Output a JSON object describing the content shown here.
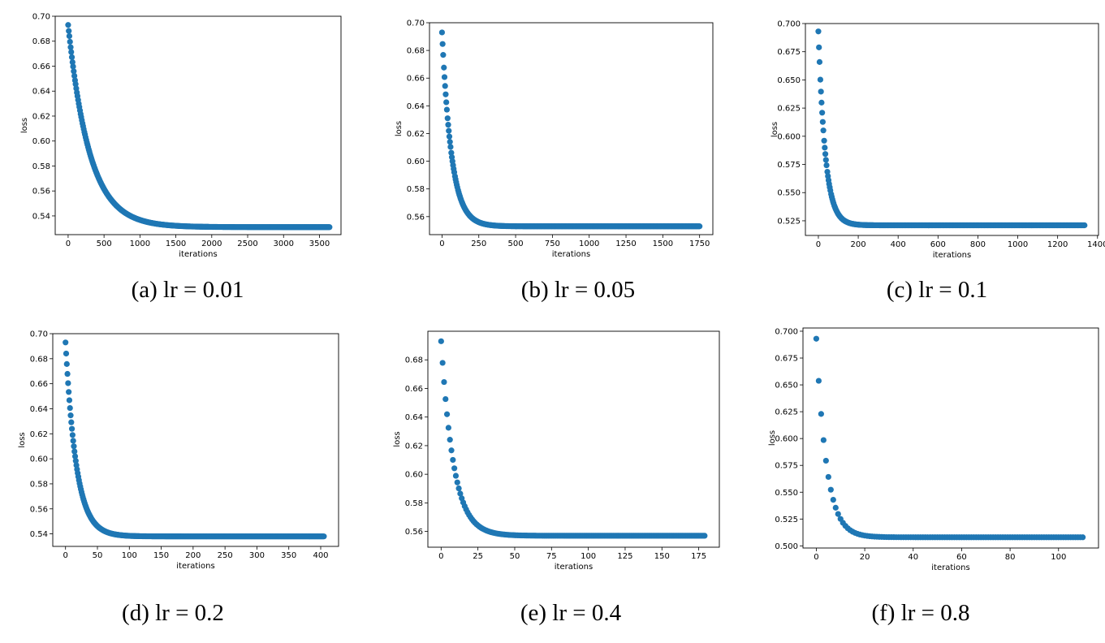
{
  "chart_data": [
    {
      "type": "scatter",
      "caption": "(a) lr = 0.01",
      "xlabel": "iterations",
      "ylabel": "loss",
      "xlim": [
        -180,
        3800
      ],
      "ylim": [
        0.525,
        0.7
      ],
      "xticks": [
        0,
        500,
        1000,
        1500,
        2000,
        2500,
        3000,
        3500
      ],
      "yticks": [
        0.54,
        0.56,
        0.58,
        0.6,
        0.62,
        0.64,
        0.66,
        0.68,
        0.7
      ],
      "ytick_labels": [
        "0.54",
        "0.56",
        "0.58",
        "0.60",
        "0.62",
        "0.64",
        "0.66",
        "0.68",
        "0.70"
      ],
      "curve": {
        "start": 0.693,
        "end": 0.531,
        "tau": 300,
        "n_points": 3640,
        "x_max": 3640
      },
      "color": "#1f77b4"
    },
    {
      "type": "scatter",
      "caption": "(b) lr = 0.05",
      "xlabel": "iterations",
      "ylabel": "loss",
      "xlim": [
        -85,
        1840
      ],
      "ylim": [
        0.547,
        0.7
      ],
      "xticks": [
        0,
        250,
        500,
        750,
        1000,
        1250,
        1500,
        1750
      ],
      "yticks": [
        0.56,
        0.58,
        0.6,
        0.62,
        0.64,
        0.66,
        0.68,
        0.7
      ],
      "ytick_labels": [
        "0.56",
        "0.58",
        "0.60",
        "0.62",
        "0.64",
        "0.66",
        "0.68",
        "0.70"
      ],
      "curve": {
        "start": 0.693,
        "end": 0.553,
        "tau": 65,
        "n_points": 1750,
        "x_max": 1750
      },
      "color": "#1f77b4"
    },
    {
      "type": "scatter",
      "caption": "(c) lr = 0.1",
      "xlabel": "iterations",
      "ylabel": "loss",
      "xlim": [
        -65,
        1405
      ],
      "ylim": [
        0.512,
        0.7
      ],
      "xticks": [
        0,
        200,
        400,
        600,
        800,
        1000,
        1200,
        1400
      ],
      "yticks": [
        0.525,
        0.55,
        0.575,
        0.6,
        0.625,
        0.65,
        0.675,
        0.7
      ],
      "ytick_labels": [
        "0.525",
        "0.550",
        "0.575",
        "0.600",
        "0.625",
        "0.650",
        "0.675",
        "0.700"
      ],
      "curve": {
        "start": 0.693,
        "end": 0.521,
        "tau": 35,
        "n_points": 1335,
        "x_max": 1335
      },
      "color": "#1f77b4"
    },
    {
      "type": "scatter",
      "caption": "(d) lr = 0.2",
      "xlabel": "iterations",
      "ylabel": "loss",
      "xlim": [
        -20,
        428
      ],
      "ylim": [
        0.53,
        0.7
      ],
      "xticks": [
        0,
        50,
        100,
        150,
        200,
        250,
        300,
        350,
        400
      ],
      "yticks": [
        0.54,
        0.56,
        0.58,
        0.6,
        0.62,
        0.64,
        0.66,
        0.68,
        0.7
      ],
      "ytick_labels": [
        "0.54",
        "0.56",
        "0.58",
        "0.60",
        "0.62",
        "0.64",
        "0.66",
        "0.68",
        "0.70"
      ],
      "curve": {
        "start": 0.693,
        "end": 0.538,
        "tau": 17,
        "n_points": 405,
        "x_max": 405
      },
      "color": "#1f77b4"
    },
    {
      "type": "scatter",
      "caption": "(e) lr = 0.4",
      "xlabel": "iterations",
      "ylabel": "loss",
      "xlim": [
        -9,
        189
      ],
      "ylim": [
        0.549,
        0.7
      ],
      "xticks": [
        0,
        25,
        50,
        75,
        100,
        125,
        150,
        175
      ],
      "yticks": [
        0.56,
        0.58,
        0.6,
        0.62,
        0.64,
        0.66,
        0.68
      ],
      "ytick_labels": [
        "0.56",
        "0.58",
        "0.60",
        "0.62",
        "0.64",
        "0.66",
        "0.68"
      ],
      "curve": {
        "start": 0.693,
        "end": 0.557,
        "tau": 8.5,
        "n_points": 180,
        "x_max": 179
      },
      "color": "#1f77b4"
    },
    {
      "type": "scatter",
      "caption": "(f) lr = 0.8",
      "xlabel": "iterations",
      "ylabel": "loss",
      "xlim": [
        -5.5,
        116.5
      ],
      "ylim": [
        0.498,
        0.703
      ],
      "xticks": [
        0,
        20,
        40,
        60,
        80,
        100
      ],
      "yticks": [
        0.5,
        0.525,
        0.55,
        0.575,
        0.6,
        0.625,
        0.65,
        0.675,
        0.7
      ],
      "ytick_labels": [
        "0.500",
        "0.525",
        "0.550",
        "0.575",
        "0.600",
        "0.625",
        "0.650",
        "0.675",
        "0.700"
      ],
      "curve": {
        "start": 0.693,
        "end": 0.508,
        "tau": 4.2,
        "n_points": 111,
        "x_max": 110
      },
      "color": "#1f77b4"
    }
  ]
}
